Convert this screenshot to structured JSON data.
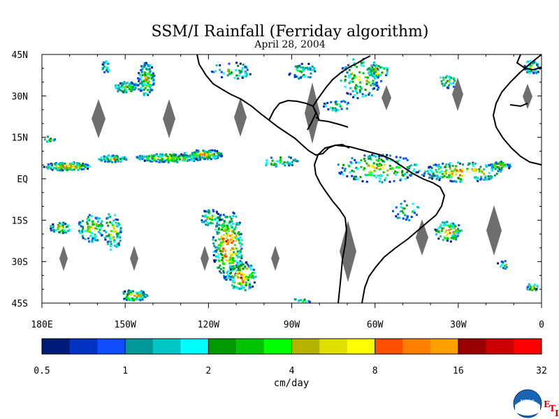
{
  "title": "SSM/I Rainfall (Ferriday algorithm)",
  "date": "April 28, 2004",
  "map": {
    "lon_range": [
      -180,
      0
    ],
    "lat_range": [
      -45,
      45
    ],
    "lat_labels": [
      "45N",
      "30N",
      "15N",
      "EQ",
      "15S",
      "30S",
      "45S"
    ],
    "lat_values": [
      45,
      30,
      15,
      0,
      -15,
      -30,
      -45
    ],
    "lon_labels": [
      "180E",
      "150W",
      "120W",
      "90W",
      "60W",
      "30W",
      "0"
    ],
    "lon_values": [
      -180,
      -150,
      -120,
      -90,
      -60,
      -30,
      0
    ],
    "no_data_color": "#6e6e6e",
    "coastline_color": "#000000"
  },
  "legend": {
    "unit_label": "cm/day",
    "tick_labels": [
      "0.5",
      "1",
      "2",
      "4",
      "8",
      "16",
      "32"
    ],
    "tick_values": [
      0.5,
      1,
      2,
      4,
      8,
      16,
      32
    ],
    "colors": [
      "#001a7a",
      "#0033c4",
      "#0f4dff",
      "#009999",
      "#00c8c8",
      "#00ffff",
      "#009900",
      "#00c400",
      "#00ff00",
      "#b3b300",
      "#e0e000",
      "#ffff00",
      "#ff5000",
      "#ff8000",
      "#ffa000",
      "#990000",
      "#cc0000",
      "#ff0000"
    ]
  },
  "logo": {
    "text": "NOAA",
    "letters": [
      "E",
      "T",
      "I"
    ]
  }
}
